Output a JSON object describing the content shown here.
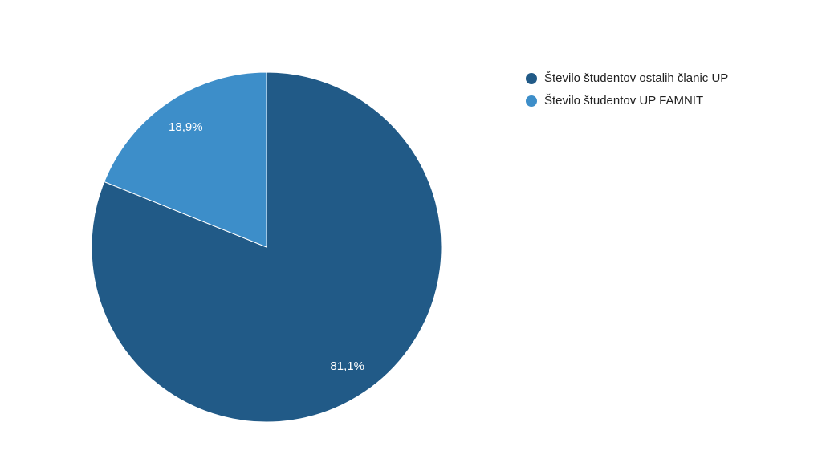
{
  "chart_data": {
    "type": "pie",
    "categories": [
      "Število študentov ostalih članic UP",
      "Število študentov UP FAMNIT"
    ],
    "values": [
      81.1,
      18.9
    ],
    "value_labels": [
      "81,1%",
      "18,9%"
    ],
    "colors": [
      "#215a87",
      "#3d8ec9"
    ],
    "legend": "right"
  }
}
